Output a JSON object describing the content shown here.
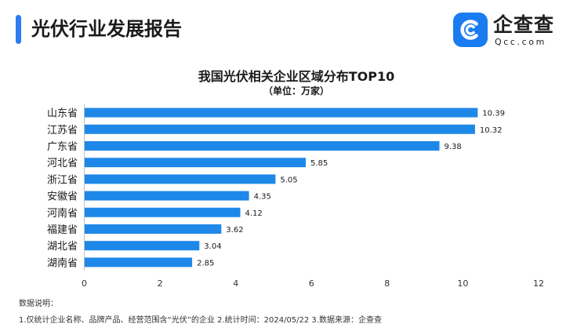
{
  "header": {
    "title": "光伏行业发展报告"
  },
  "logo": {
    "name": "企查查",
    "domain": "Qcc.com"
  },
  "chart_data": {
    "type": "bar",
    "orientation": "horizontal",
    "title": "我国光伏相关企业区域分布TOP10",
    "subtitle": "（单位：万家）",
    "categories": [
      "山东省",
      "江苏省",
      "广东省",
      "河北省",
      "浙江省",
      "安徽省",
      "河南省",
      "福建省",
      "湖北省",
      "湖南省"
    ],
    "values": [
      10.39,
      10.32,
      9.38,
      5.85,
      5.05,
      4.35,
      4.12,
      3.62,
      3.04,
      2.85
    ],
    "value_labels": [
      "10.39",
      "10.32",
      "9.38",
      "5.85",
      "5.05",
      "4.35",
      "4.12",
      "3.62",
      "3.04",
      "2.85"
    ],
    "xlim": [
      0,
      12
    ],
    "xticks": [
      "0",
      "2",
      "4",
      "6",
      "8",
      "10",
      "12"
    ],
    "xlabel": "",
    "ylabel": "",
    "grid": false,
    "bar_color": "#1e88e8"
  },
  "notes": {
    "heading": "数据说明：",
    "body": "1.仅统计企业名称、品牌产品、经营范围含“光伏”的企业  2.统计时间：2024/05/22  3.数据来源：企查查"
  }
}
